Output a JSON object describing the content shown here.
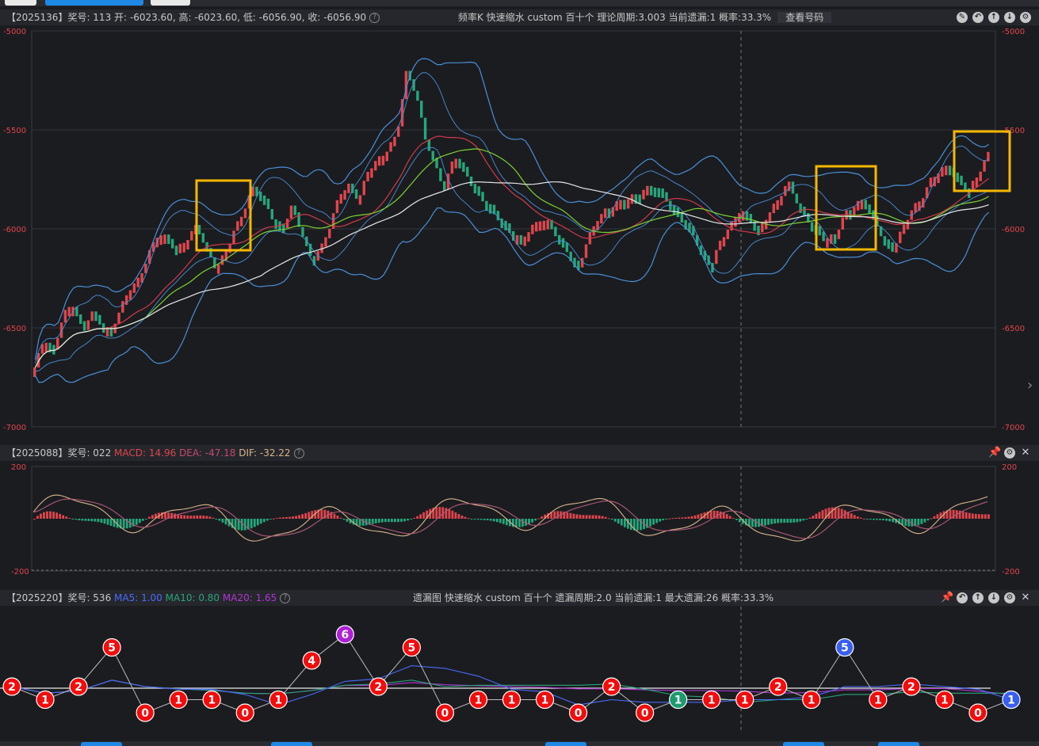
{
  "main_panel": {
    "header_left": "【2025136】奖号: 113  开: -6023.60, 高: -6023.60, 低: -6056.90, 收: -6056.90",
    "header_center": "频率K  快速缩水  custom  百十个  理论周期:3.003  当前遗漏:1  概率:33.3%",
    "lookup_button": "查看号码",
    "icons": [
      "edit-icon",
      "undo-icon",
      "up-icon",
      "down-icon",
      "settings-icon"
    ]
  },
  "macd_panel": {
    "header_code": "【2025088】奖号: 022",
    "macd_label": "MACD: 14.96",
    "dea_label": "DEA: -47.18",
    "dif_label": "DIF: -32.22",
    "icons": [
      "pin-icon",
      "settings-icon",
      "close-icon"
    ]
  },
  "miss_panel": {
    "header_code": "【2025220】奖号: 536",
    "ma5_label": "MA5: 1.00",
    "ma10_label": "MA10: 0.80",
    "ma20_label": "MA20: 1.65",
    "header_center": "遗漏图  快速缩水  custom  百十个  遗漏周期:2.0  当前遗漏:1  最大遗漏:26  概率:33.3%",
    "icons": [
      "pin-icon",
      "back-icon",
      "up-icon",
      "down-icon",
      "settings-icon",
      "close-icon"
    ]
  },
  "colors": {
    "up": "#e0454d",
    "down": "#26a67a",
    "boll": "#4a8fd8",
    "ma_red": "#d23a4a",
    "ma_green": "#7bd233",
    "ma_white": "#e8e8e8",
    "highlight": "#f5b800",
    "dif": "#d8b48a",
    "dea": "#b05a7a",
    "ma5": "#4b6bff",
    "ma10": "#26a67a",
    "ma20": "#b034d6"
  },
  "chart_data": [
    {
      "type": "candlestick",
      "title": "",
      "ylim": [
        -7000,
        -5000
      ],
      "y_ticks": [
        "-5000",
        "-5500",
        "-6000",
        "-6500",
        "-7000"
      ],
      "close_path": [
        -6700,
        -6550,
        -6620,
        -6430,
        -6380,
        -6500,
        -6420,
        -6480,
        -6520,
        -6400,
        -6300,
        -6250,
        -6120,
        -6020,
        -6050,
        -6100,
        -6050,
        -5980,
        -6100,
        -6200,
        -6120,
        -6000,
        -5900,
        -5780,
        -5850,
        -5950,
        -6000,
        -5880,
        -6020,
        -6150,
        -6100,
        -5980,
        -5820,
        -5780,
        -5850,
        -5700,
        -5650,
        -5600,
        -5520,
        -5200,
        -5320,
        -5550,
        -5680,
        -5800,
        -5620,
        -5700,
        -5780,
        -5850,
        -5900,
        -5960,
        -6020,
        -6050,
        -6000,
        -5950,
        -5970,
        -6050,
        -6120,
        -6200,
        -6050,
        -5950,
        -5900,
        -5870,
        -5850,
        -5830,
        -5800,
        -5780,
        -5830,
        -5900,
        -5950,
        -6020,
        -6130,
        -6180,
        -6050,
        -5980,
        -5900,
        -5950,
        -6000,
        -5920,
        -5850,
        -5760,
        -5870,
        -5950,
        -6000,
        -6050,
        -6030,
        -5920,
        -5880,
        -5850,
        -5950,
        -6050,
        -6100,
        -6000,
        -5900,
        -5850,
        -5750,
        -5700,
        -5680,
        -5760,
        -5800,
        -5720,
        -5620
      ]
    },
    {
      "type": "macd",
      "ylim": [
        -200,
        200
      ],
      "y_ticks": [
        "200",
        "-200"
      ]
    },
    {
      "type": "miss",
      "nodes": [
        {
          "v": 2,
          "c": "red"
        },
        {
          "v": 1,
          "c": "red"
        },
        {
          "v": 2,
          "c": "red"
        },
        {
          "v": 5,
          "c": "red"
        },
        {
          "v": 0,
          "c": "red"
        },
        {
          "v": 1,
          "c": "red"
        },
        {
          "v": 1,
          "c": "red"
        },
        {
          "v": 0,
          "c": "red"
        },
        {
          "v": 1,
          "c": "red"
        },
        {
          "v": 4,
          "c": "red"
        },
        {
          "v": 6,
          "c": "purple"
        },
        {
          "v": 2,
          "c": "red"
        },
        {
          "v": 5,
          "c": "red"
        },
        {
          "v": 0,
          "c": "red"
        },
        {
          "v": 1,
          "c": "red"
        },
        {
          "v": 1,
          "c": "red"
        },
        {
          "v": 1,
          "c": "red"
        },
        {
          "v": 0,
          "c": "red"
        },
        {
          "v": 2,
          "c": "red"
        },
        {
          "v": 0,
          "c": "red"
        },
        {
          "v": 1,
          "c": "green"
        },
        {
          "v": 1,
          "c": "red"
        },
        {
          "v": 1,
          "c": "red"
        },
        {
          "v": 2,
          "c": "red"
        },
        {
          "v": 1,
          "c": "red"
        },
        {
          "v": 5,
          "c": "blue"
        },
        {
          "v": 1,
          "c": "red"
        },
        {
          "v": 2,
          "c": "red"
        },
        {
          "v": 1,
          "c": "red"
        },
        {
          "v": 0,
          "c": "red"
        },
        {
          "v": 1,
          "c": "blue"
        }
      ]
    }
  ]
}
